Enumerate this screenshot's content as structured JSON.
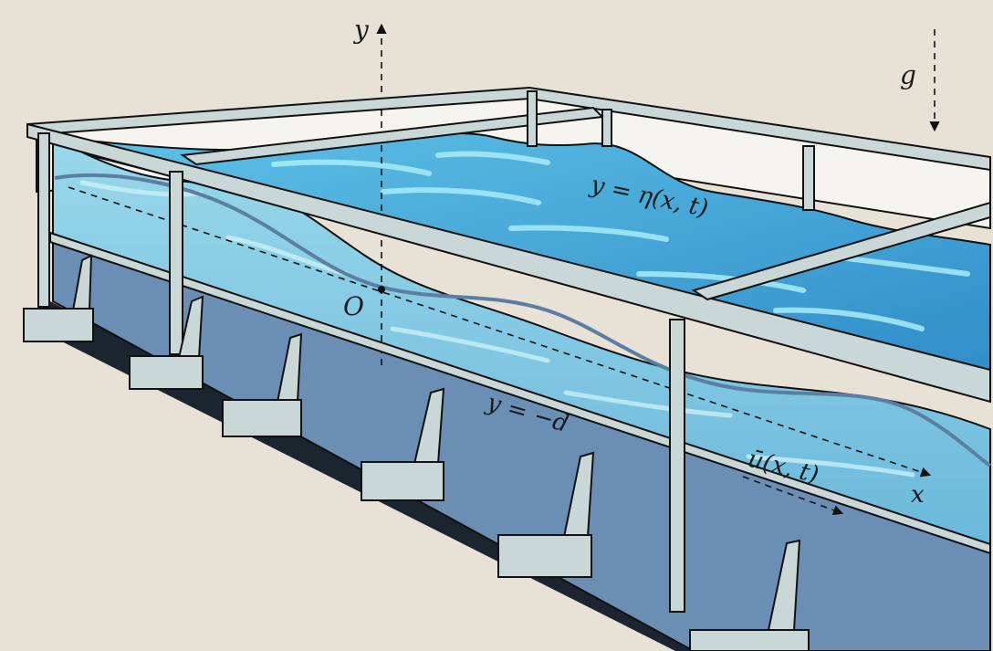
{
  "labels": {
    "y_axis": "y",
    "gravity": "g",
    "origin": "O",
    "surface": "y = η(x, t)",
    "bottom": "y = −d",
    "velocity": "ū(x, t)",
    "x_axis": "x"
  },
  "colors": {
    "background": "#e8e2d6",
    "water_light": "#8fd6ea",
    "water_mid": "#5bb8dd",
    "water_deep": "#3c8fc4",
    "tank_side_lower": "#6b8fb4",
    "frame": "#c9d8d6",
    "outline": "#111111"
  }
}
